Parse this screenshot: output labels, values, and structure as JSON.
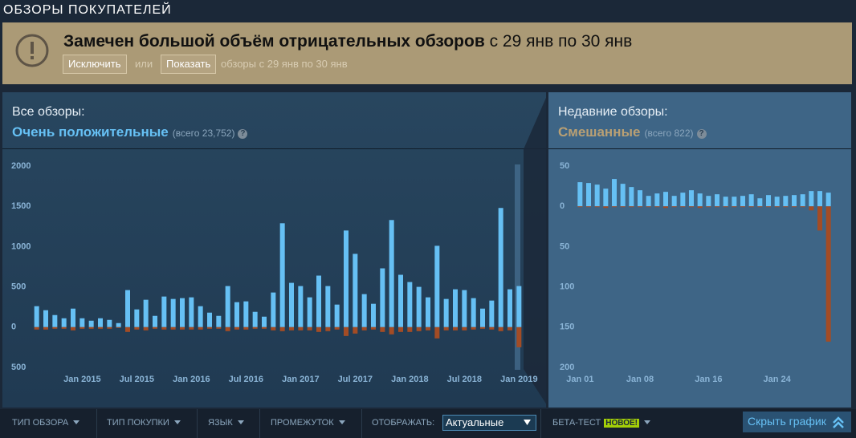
{
  "header": {
    "title": "ОБЗОРЫ ПОКУПАТЕЛЕЙ"
  },
  "alert": {
    "title": "Замечен большой объём отрицательных обзоров",
    "period": "с 29 янв по 30 янв",
    "exclude": "Исключить",
    "or": "или",
    "show": "Показать",
    "note": "обзоры с 29 янв по 30 янв"
  },
  "summaries": [
    {
      "label": "Все обзоры:",
      "rating": "Очень положительные",
      "color": "#66c0f4",
      "total": "(всего 23,752)",
      "help": "?"
    },
    {
      "label": "Недавние обзоры:",
      "rating": "Смешанные",
      "color": "#b9a074",
      "total": "(всего 822)",
      "help": "?"
    }
  ],
  "chart_data": [
    {
      "type": "bar",
      "categories": [
        null,
        null,
        null,
        null,
        null,
        "Jan 2015",
        null,
        null,
        null,
        null,
        null,
        "Jul 2015",
        null,
        null,
        null,
        null,
        null,
        "Jan 2016",
        null,
        null,
        null,
        null,
        null,
        "Jul 2016",
        null,
        null,
        null,
        null,
        null,
        "Jan 2017",
        null,
        null,
        null,
        null,
        null,
        "Jul 2017",
        null,
        null,
        null,
        null,
        null,
        "Jan 2018",
        null,
        null,
        null,
        null,
        null,
        "Jul 2018",
        null,
        null,
        null,
        null,
        null,
        "Jan 2019"
      ],
      "series": [
        {
          "color": "#66c0f4",
          "values": [
            260,
            210,
            150,
            110,
            230,
            110,
            80,
            110,
            90,
            50,
            460,
            220,
            340,
            140,
            380,
            350,
            360,
            370,
            260,
            180,
            140,
            510,
            310,
            320,
            190,
            130,
            430,
            1290,
            550,
            510,
            370,
            640,
            510,
            280,
            1200,
            910,
            410,
            290,
            730,
            1330,
            650,
            560,
            500,
            370,
            1010,
            350,
            470,
            460,
            360,
            230,
            330,
            1480,
            470,
            510
          ]
        },
        {
          "color": "#a34c25",
          "values": [
            -30,
            -30,
            -20,
            -20,
            -40,
            -20,
            -20,
            -20,
            -20,
            -10,
            -60,
            -30,
            -40,
            -20,
            -30,
            -30,
            -30,
            -30,
            -30,
            -20,
            -20,
            -50,
            -30,
            -30,
            -20,
            -20,
            -40,
            -50,
            -40,
            -40,
            -40,
            -60,
            -50,
            -30,
            -110,
            -80,
            -40,
            -30,
            -60,
            -90,
            -60,
            -60,
            -50,
            -40,
            -140,
            -40,
            -40,
            -40,
            -30,
            -20,
            -30,
            -50,
            -40,
            -250
          ]
        }
      ],
      "ylim": [
        -550,
        2100
      ],
      "yticks": [
        {
          "value": -500,
          "label": "500"
        },
        0,
        500,
        1000,
        1500,
        2000
      ]
    },
    {
      "type": "bar",
      "categories": [
        "Jan 01",
        null,
        null,
        null,
        null,
        null,
        null,
        "Jan 08",
        null,
        null,
        null,
        null,
        null,
        null,
        null,
        "Jan 16",
        null,
        null,
        null,
        null,
        null,
        null,
        null,
        "Jan 24",
        null,
        null,
        null,
        null,
        null,
        null
      ],
      "series": [
        {
          "color": "#66c0f4",
          "values": [
            30,
            29,
            27,
            22,
            34,
            28,
            24,
            20,
            13,
            16,
            18,
            13,
            17,
            20,
            16,
            13,
            15,
            12,
            12,
            13,
            15,
            10,
            14,
            12,
            13,
            14,
            15,
            19,
            19,
            17
          ]
        },
        {
          "color": "#a34c25",
          "values": [
            -1,
            -1,
            -1,
            -2,
            -1,
            -1,
            -1,
            -1,
            -1,
            -1,
            -2,
            -1,
            -1,
            -1,
            -2,
            -1,
            -1,
            -1,
            -1,
            -1,
            -1,
            -1,
            -1,
            -1,
            -1,
            -1,
            -1,
            -5,
            -30,
            -168
          ]
        }
      ],
      "ylim": [
        -205,
        60
      ],
      "yticks": [
        {
          "value": -200,
          "label": "200"
        },
        {
          "value": -150,
          "label": "150"
        },
        {
          "value": -100,
          "label": "100"
        },
        {
          "value": -50,
          "label": "50"
        },
        0,
        50
      ]
    }
  ],
  "filters": {
    "items": [
      "ТИП ОБЗОРА",
      "ТИП ПОКУПКИ",
      "ЯЗЫК",
      "ПРОМЕЖУТОК"
    ],
    "display_label": "ОТОБРАЖАТЬ:",
    "display_value": "Актуальные",
    "beta": "БЕТА-ТЕСТ",
    "new_badge": "НОВОЕ!",
    "hide_graph": "Скрыть график"
  }
}
